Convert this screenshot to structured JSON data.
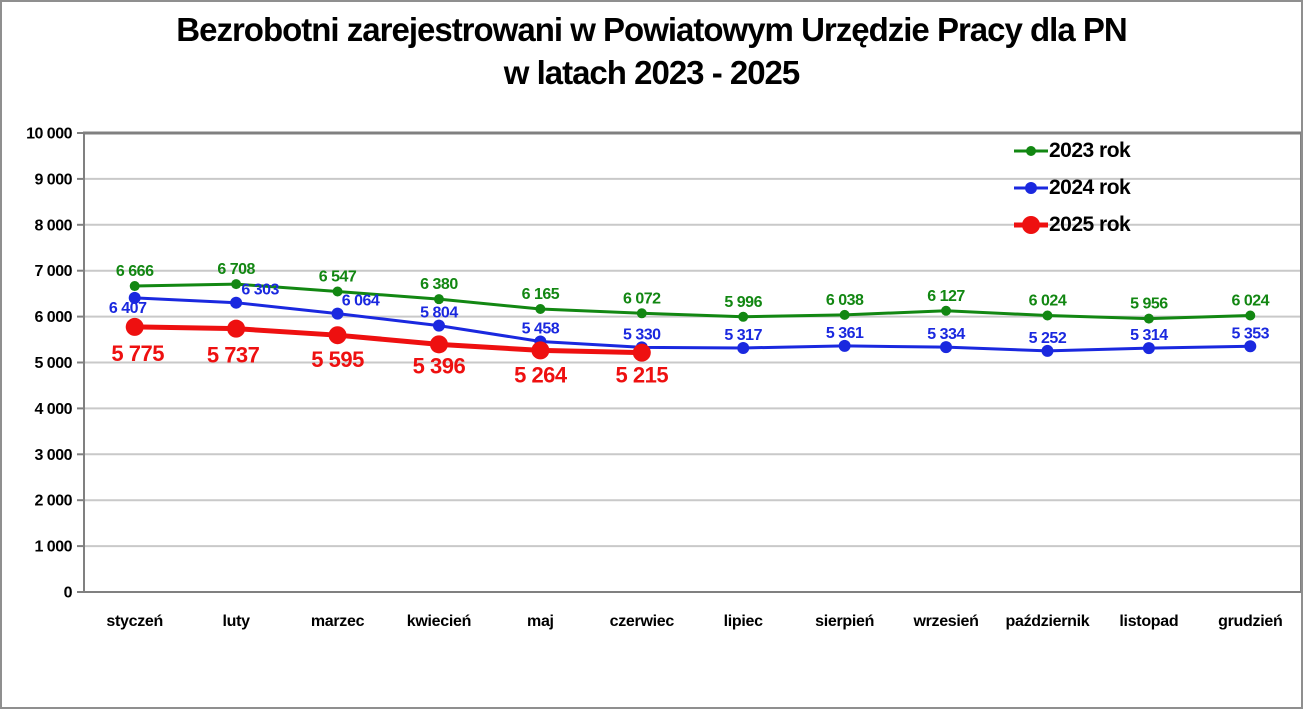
{
  "page": {
    "background": "#FFFFFF",
    "border_color": "#8F8F8F"
  },
  "chart_data": {
    "type": "line",
    "title": "Bezrobotni zarejestrowani w Powiatowym Urzędzie Pracy dla PN",
    "subtitle": "w latach 2023 - 2025",
    "xlabel": "",
    "ylabel": "",
    "grid": "horizontal",
    "legend_position": "top-right",
    "ylim": [
      0,
      10000
    ],
    "ytick_step": 1000,
    "ytick_labels": [
      "0",
      "1 000",
      "2 000",
      "3 000",
      "4 000",
      "5 000",
      "6 000",
      "7 000",
      "8 000",
      "9 000",
      "10 000"
    ],
    "categories": [
      "styczeń",
      "luty",
      "marzec",
      "kwiecień",
      "maj",
      "czerwiec",
      "lipiec",
      "sierpień",
      "wrzesień",
      "październik",
      "listopad",
      "grudzień"
    ],
    "colors": {
      "grid": "#C9C9C9",
      "frame": "#808080",
      "text": "#000000"
    },
    "series": [
      {
        "name": "2023 rok",
        "color": "#128712",
        "values": [
          6666,
          6708,
          6547,
          6380,
          6165,
          6072,
          5996,
          6038,
          6127,
          6024,
          5956,
          6024
        ],
        "point_labels": [
          "6 666",
          "6 708",
          "6 547",
          "6 380",
          "6 165",
          "6 072",
          "5 996",
          "6 038",
          "6 127",
          "6 024",
          "5 956",
          "6 024"
        ],
        "label_position": "above",
        "label_font_size": 16,
        "label_dy": -10,
        "line_width": 3,
        "marker_radius": 5,
        "label_offsets": {}
      },
      {
        "name": "2024 rok",
        "color": "#1A28DF",
        "values": [
          6407,
          6303,
          6064,
          5804,
          5458,
          5330,
          5317,
          5361,
          5334,
          5252,
          5314,
          5353
        ],
        "point_labels": [
          "6 407",
          "6 303",
          "6 064",
          "5 804",
          "5 458",
          "5 330",
          "5 317",
          "5 361",
          "5 334",
          "5 252",
          "5 314",
          "5 353"
        ],
        "label_position": "above",
        "label_font_size": 16,
        "label_dy": -8,
        "line_width": 3,
        "marker_radius": 6,
        "label_offsets": {
          "0": {
            "dx": -7,
            "dy": 23
          },
          "1": {
            "dx": 24,
            "dy": 0
          },
          "2": {
            "dx": 23,
            "dy": 0
          }
        }
      },
      {
        "name": "2025 rok",
        "color": "#EE1010",
        "values": [
          5775,
          5737,
          5595,
          5396,
          5264,
          5215
        ],
        "point_labels": [
          "5 775",
          "5 737",
          "5 595",
          "5 396",
          "5 264",
          "5 215"
        ],
        "label_position": "below",
        "label_font_size": 22,
        "label_dy": 32,
        "line_width": 5,
        "marker_radius": 9,
        "label_offsets": {
          "0": {
            "dx": 3,
            "dy": 2
          },
          "1": {
            "dx": -3,
            "dy": 2
          },
          "3": {
            "dx": 0,
            "dy": -3
          },
          "5": {
            "dx": 0,
            "dy": -2
          }
        }
      }
    ]
  }
}
